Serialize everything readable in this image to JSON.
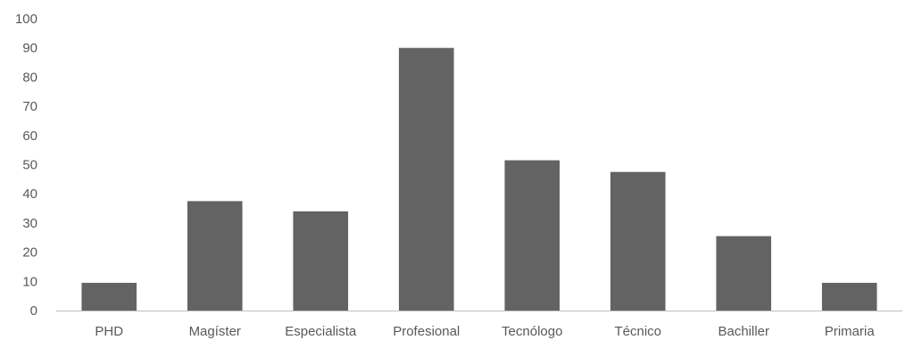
{
  "chart_data": {
    "type": "bar",
    "categories": [
      "PHD",
      "Magíster",
      "Especialista",
      "Profesional",
      "Tecnólogo",
      "Técnico",
      "Bachiller",
      "Primaria"
    ],
    "values": [
      9.5,
      37.5,
      34,
      90,
      51.5,
      47.5,
      25.5,
      9.5
    ],
    "title": "",
    "xlabel": "",
    "ylabel": "",
    "ylim": [
      0,
      100
    ],
    "yticks": [
      "0",
      "10",
      "20",
      "30",
      "40",
      "50",
      "60",
      "70",
      "80",
      "90",
      "100"
    ],
    "grid": false,
    "legend": "none",
    "bar_color": "#636363",
    "axis_color": "#bfbfbf",
    "label_color": "#595959"
  }
}
